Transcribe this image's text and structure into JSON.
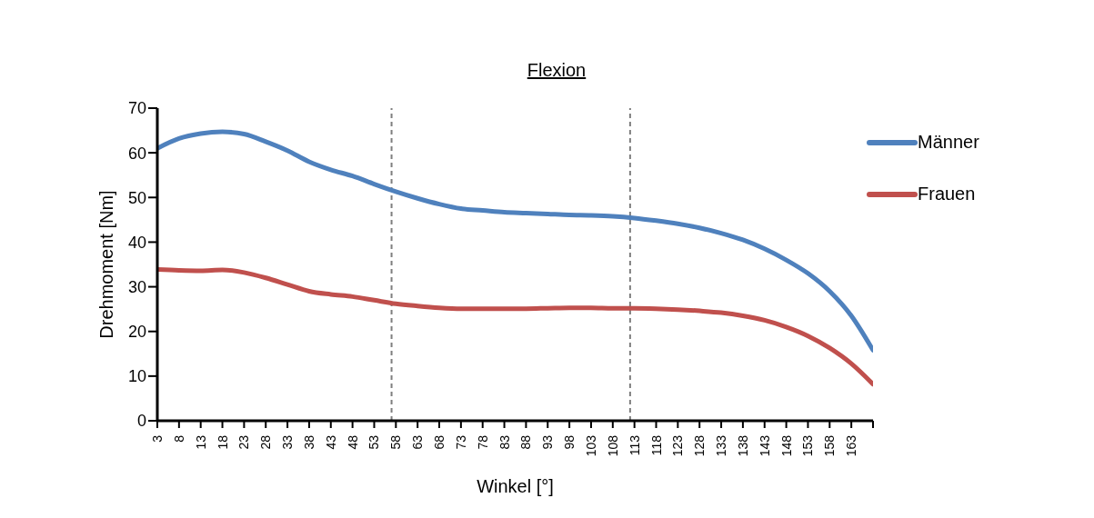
{
  "chart_data": {
    "type": "line",
    "title": "Flexion",
    "xlabel": "Winkel [°]",
    "ylabel": "Drehmoment [Nm]",
    "x": [
      3,
      8,
      13,
      18,
      23,
      28,
      33,
      38,
      43,
      48,
      53,
      58,
      63,
      68,
      73,
      78,
      83,
      88,
      93,
      98,
      103,
      108,
      113,
      118,
      123,
      128,
      133,
      138,
      143,
      148,
      153,
      158,
      163,
      168
    ],
    "series": [
      {
        "name": "Männer",
        "color": "#4f81bd",
        "values": [
          61,
          63.2,
          64.3,
          64.7,
          64.2,
          62.5,
          60.5,
          58,
          56.2,
          54.8,
          53,
          51.3,
          49.8,
          48.5,
          47.5,
          47.1,
          46.7,
          46.5,
          46.3,
          46.1,
          46,
          45.8,
          45.4,
          44.8,
          44.1,
          43.2,
          42,
          40.5,
          38.5,
          36,
          33,
          29,
          23.5,
          15.8
        ]
      },
      {
        "name": "Frauen",
        "color": "#c0504d",
        "values": [
          33.9,
          33.7,
          33.6,
          33.8,
          33.2,
          32,
          30.5,
          29,
          28.3,
          27.8,
          27,
          26.2,
          25.7,
          25.3,
          25.1,
          25.1,
          25.1,
          25.1,
          25.2,
          25.3,
          25.3,
          25.2,
          25.2,
          25.1,
          24.9,
          24.6,
          24.2,
          23.5,
          22.5,
          21,
          19,
          16.3,
          12.8,
          8.2
        ]
      }
    ],
    "xlim": [
      3,
      168
    ],
    "xticks": [
      3,
      8,
      13,
      18,
      23,
      28,
      33,
      38,
      43,
      48,
      53,
      58,
      63,
      68,
      73,
      78,
      83,
      88,
      93,
      98,
      103,
      108,
      113,
      118,
      123,
      128,
      133,
      138,
      143,
      148,
      153,
      158,
      163,
      {
        "value": 168,
        "label": null
      }
    ],
    "ylim": [
      0,
      70
    ],
    "yticks": [
      0,
      10,
      20,
      30,
      40,
      50,
      60,
      70
    ],
    "ref_lines": [
      {
        "axis": "x",
        "value": 57,
        "color": "#7f7f7f",
        "line_style": "dashed"
      },
      {
        "axis": "x",
        "value": 112,
        "color": "#7f7f7f",
        "line_style": "dashed"
      }
    ],
    "grid": false,
    "legend": "top right",
    "marker": "none",
    "line_style": "solid"
  }
}
